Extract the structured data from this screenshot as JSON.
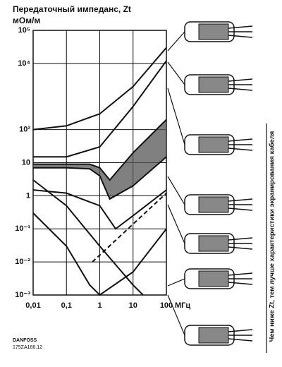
{
  "chart_data": {
    "type": "line",
    "title": "Передаточный импеданс, Zt",
    "ylabel": "мОм/м",
    "xlabel": "МГц",
    "side_note": "Чем ниже Zt, тем лучше характеристики экранирования кабеля",
    "footer": [
      "DANFOSS",
      "175ZA166.12"
    ],
    "log_x": true,
    "log_y": true,
    "grid": true,
    "xlim": [
      0.01,
      100
    ],
    "ylim": [
      0.001,
      100000
    ],
    "xticks": [
      {
        "value": 0.01,
        "label": "0,01"
      },
      {
        "value": 0.1,
        "label": "0,1"
      },
      1,
      10,
      100
    ],
    "yticks": [
      {
        "value": 0.001,
        "label": "10⁻³"
      },
      {
        "value": 0.01,
        "label": "10⁻²"
      },
      {
        "value": 0.1,
        "label": "10⁻¹"
      },
      1,
      10,
      {
        "value": 100,
        "label": "10²"
      },
      {
        "value": 10000,
        "label": "10⁴"
      },
      {
        "value": 100000,
        "label": "10⁵"
      }
    ],
    "band": [
      2,
      3
    ],
    "series": [
      {
        "color": "#111111",
        "linestyle": "solid",
        "x": [
          0.01,
          0.1,
          1,
          10,
          100
        ],
        "values": [
          100,
          130,
          300,
          2000,
          30000
        ]
      },
      {
        "color": "#111111",
        "linestyle": "solid",
        "x": [
          0.01,
          0.1,
          1,
          10,
          100
        ],
        "values": [
          15,
          15,
          30,
          500,
          12000
        ]
      },
      {
        "color": "#111111",
        "linestyle": "solid",
        "x": [
          0.01,
          0.1,
          0.5,
          1,
          2,
          10,
          100
        ],
        "values": [
          9,
          9,
          9,
          7,
          3,
          20,
          200
        ]
      },
      {
        "color": "#111111",
        "linestyle": "solid",
        "x": [
          0.01,
          0.1,
          0.5,
          1,
          2,
          10,
          100
        ],
        "values": [
          7,
          7,
          6.5,
          4,
          0.8,
          2,
          15
        ]
      },
      {
        "color": "#111111",
        "linestyle": "solid",
        "x": [
          0.01,
          0.1,
          1,
          3,
          10,
          100
        ],
        "values": [
          1.5,
          1.2,
          0.5,
          0.1,
          0.25,
          1.5
        ]
      },
      {
        "color": "#111111",
        "linestyle": "dashed",
        "x": [
          0.6,
          100
        ],
        "values": [
          0.01,
          1.2
        ]
      },
      {
        "color": "#111111",
        "linestyle": "solid",
        "x": [
          0.01,
          0.1,
          1,
          10,
          20
        ],
        "values": [
          3,
          0.5,
          0.03,
          0.002,
          0.001
        ]
      },
      {
        "color": "#111111",
        "linestyle": "solid",
        "x": [
          0.01,
          0.1,
          0.5,
          1,
          10,
          100
        ],
        "values": [
          0.3,
          0.03,
          0.002,
          0.001,
          0.005,
          0.1
        ]
      }
    ]
  }
}
